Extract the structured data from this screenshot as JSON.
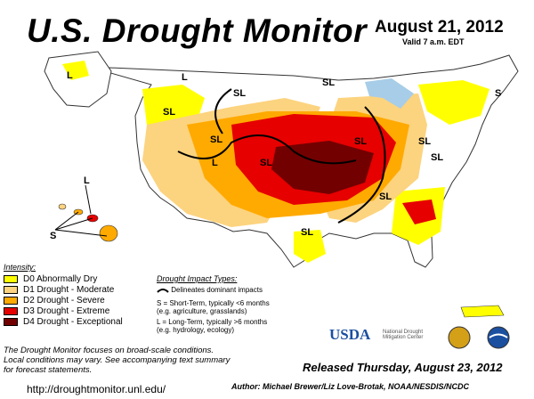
{
  "header": {
    "title": "U.S. Drought Monitor",
    "date": "August 21, 2012",
    "valid": "Valid 7 a.m. EDT"
  },
  "legend": {
    "title": "Intensity:",
    "items": [
      {
        "label": "D0 Abnormally Dry",
        "color": "#ffff00"
      },
      {
        "label": "D1 Drought - Moderate",
        "color": "#fcd37f"
      },
      {
        "label": "D2 Drought - Severe",
        "color": "#ffaa00"
      },
      {
        "label": "D3 Drought - Extreme",
        "color": "#e60000"
      },
      {
        "label": "D4 Drought - Exceptional",
        "color": "#730000"
      }
    ]
  },
  "impact": {
    "title": "Drought Impact Types:",
    "line": "Delineates dominant impacts",
    "s1": "S = Short-Term, typically <6 months",
    "s2": "(e.g. agriculture, grasslands)",
    "l1": "L = Long-Term, typically >6 months",
    "l2": "(e.g. hydrology, ecology)"
  },
  "map_labels": {
    "sl": "SL",
    "s": "S",
    "l": "L"
  },
  "notes": {
    "line1": "The Drought Monitor focuses on broad-scale conditions.",
    "line2": "Local conditions may vary. See accompanying text summary",
    "line3": "for forecast statements."
  },
  "footer": {
    "released": "Released Thursday, August 23, 2012",
    "author": "Author: Michael Brewer/Liz Love-Brotak, NOAA/NESDIS/NCDC",
    "url": "http://droughtmonitor.unl.edu/"
  },
  "logos": {
    "usda": "USDA",
    "ndmc": "National Drought Mitigation Center"
  }
}
